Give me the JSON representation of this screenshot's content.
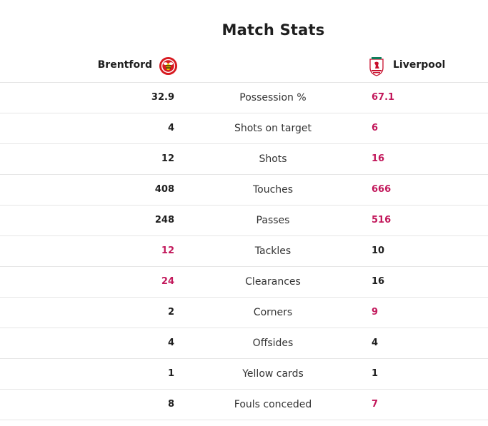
{
  "title": "Match Stats",
  "home": {
    "name": "Brentford",
    "crest_icon": "brentford-bee-crest-icon"
  },
  "away": {
    "name": "Liverpool",
    "crest_icon": "liverpool-liverbird-crest-icon"
  },
  "colors": {
    "leader": "#c2185b",
    "text": "#1e1e1e",
    "label": "#333333",
    "divider": "#e6e6e6"
  },
  "stats": [
    {
      "label": "Possession %",
      "home": "32.9",
      "away": "67.1",
      "leader": "away"
    },
    {
      "label": "Shots on target",
      "home": "4",
      "away": "6",
      "leader": "away"
    },
    {
      "label": "Shots",
      "home": "12",
      "away": "16",
      "leader": "away"
    },
    {
      "label": "Touches",
      "home": "408",
      "away": "666",
      "leader": "away"
    },
    {
      "label": "Passes",
      "home": "248",
      "away": "516",
      "leader": "away"
    },
    {
      "label": "Tackles",
      "home": "12",
      "away": "10",
      "leader": "home"
    },
    {
      "label": "Clearances",
      "home": "24",
      "away": "16",
      "leader": "home"
    },
    {
      "label": "Corners",
      "home": "2",
      "away": "9",
      "leader": "away"
    },
    {
      "label": "Offsides",
      "home": "4",
      "away": "4",
      "leader": "none"
    },
    {
      "label": "Yellow cards",
      "home": "1",
      "away": "1",
      "leader": "none"
    },
    {
      "label": "Fouls conceded",
      "home": "8",
      "away": "7",
      "leader": "away"
    }
  ]
}
